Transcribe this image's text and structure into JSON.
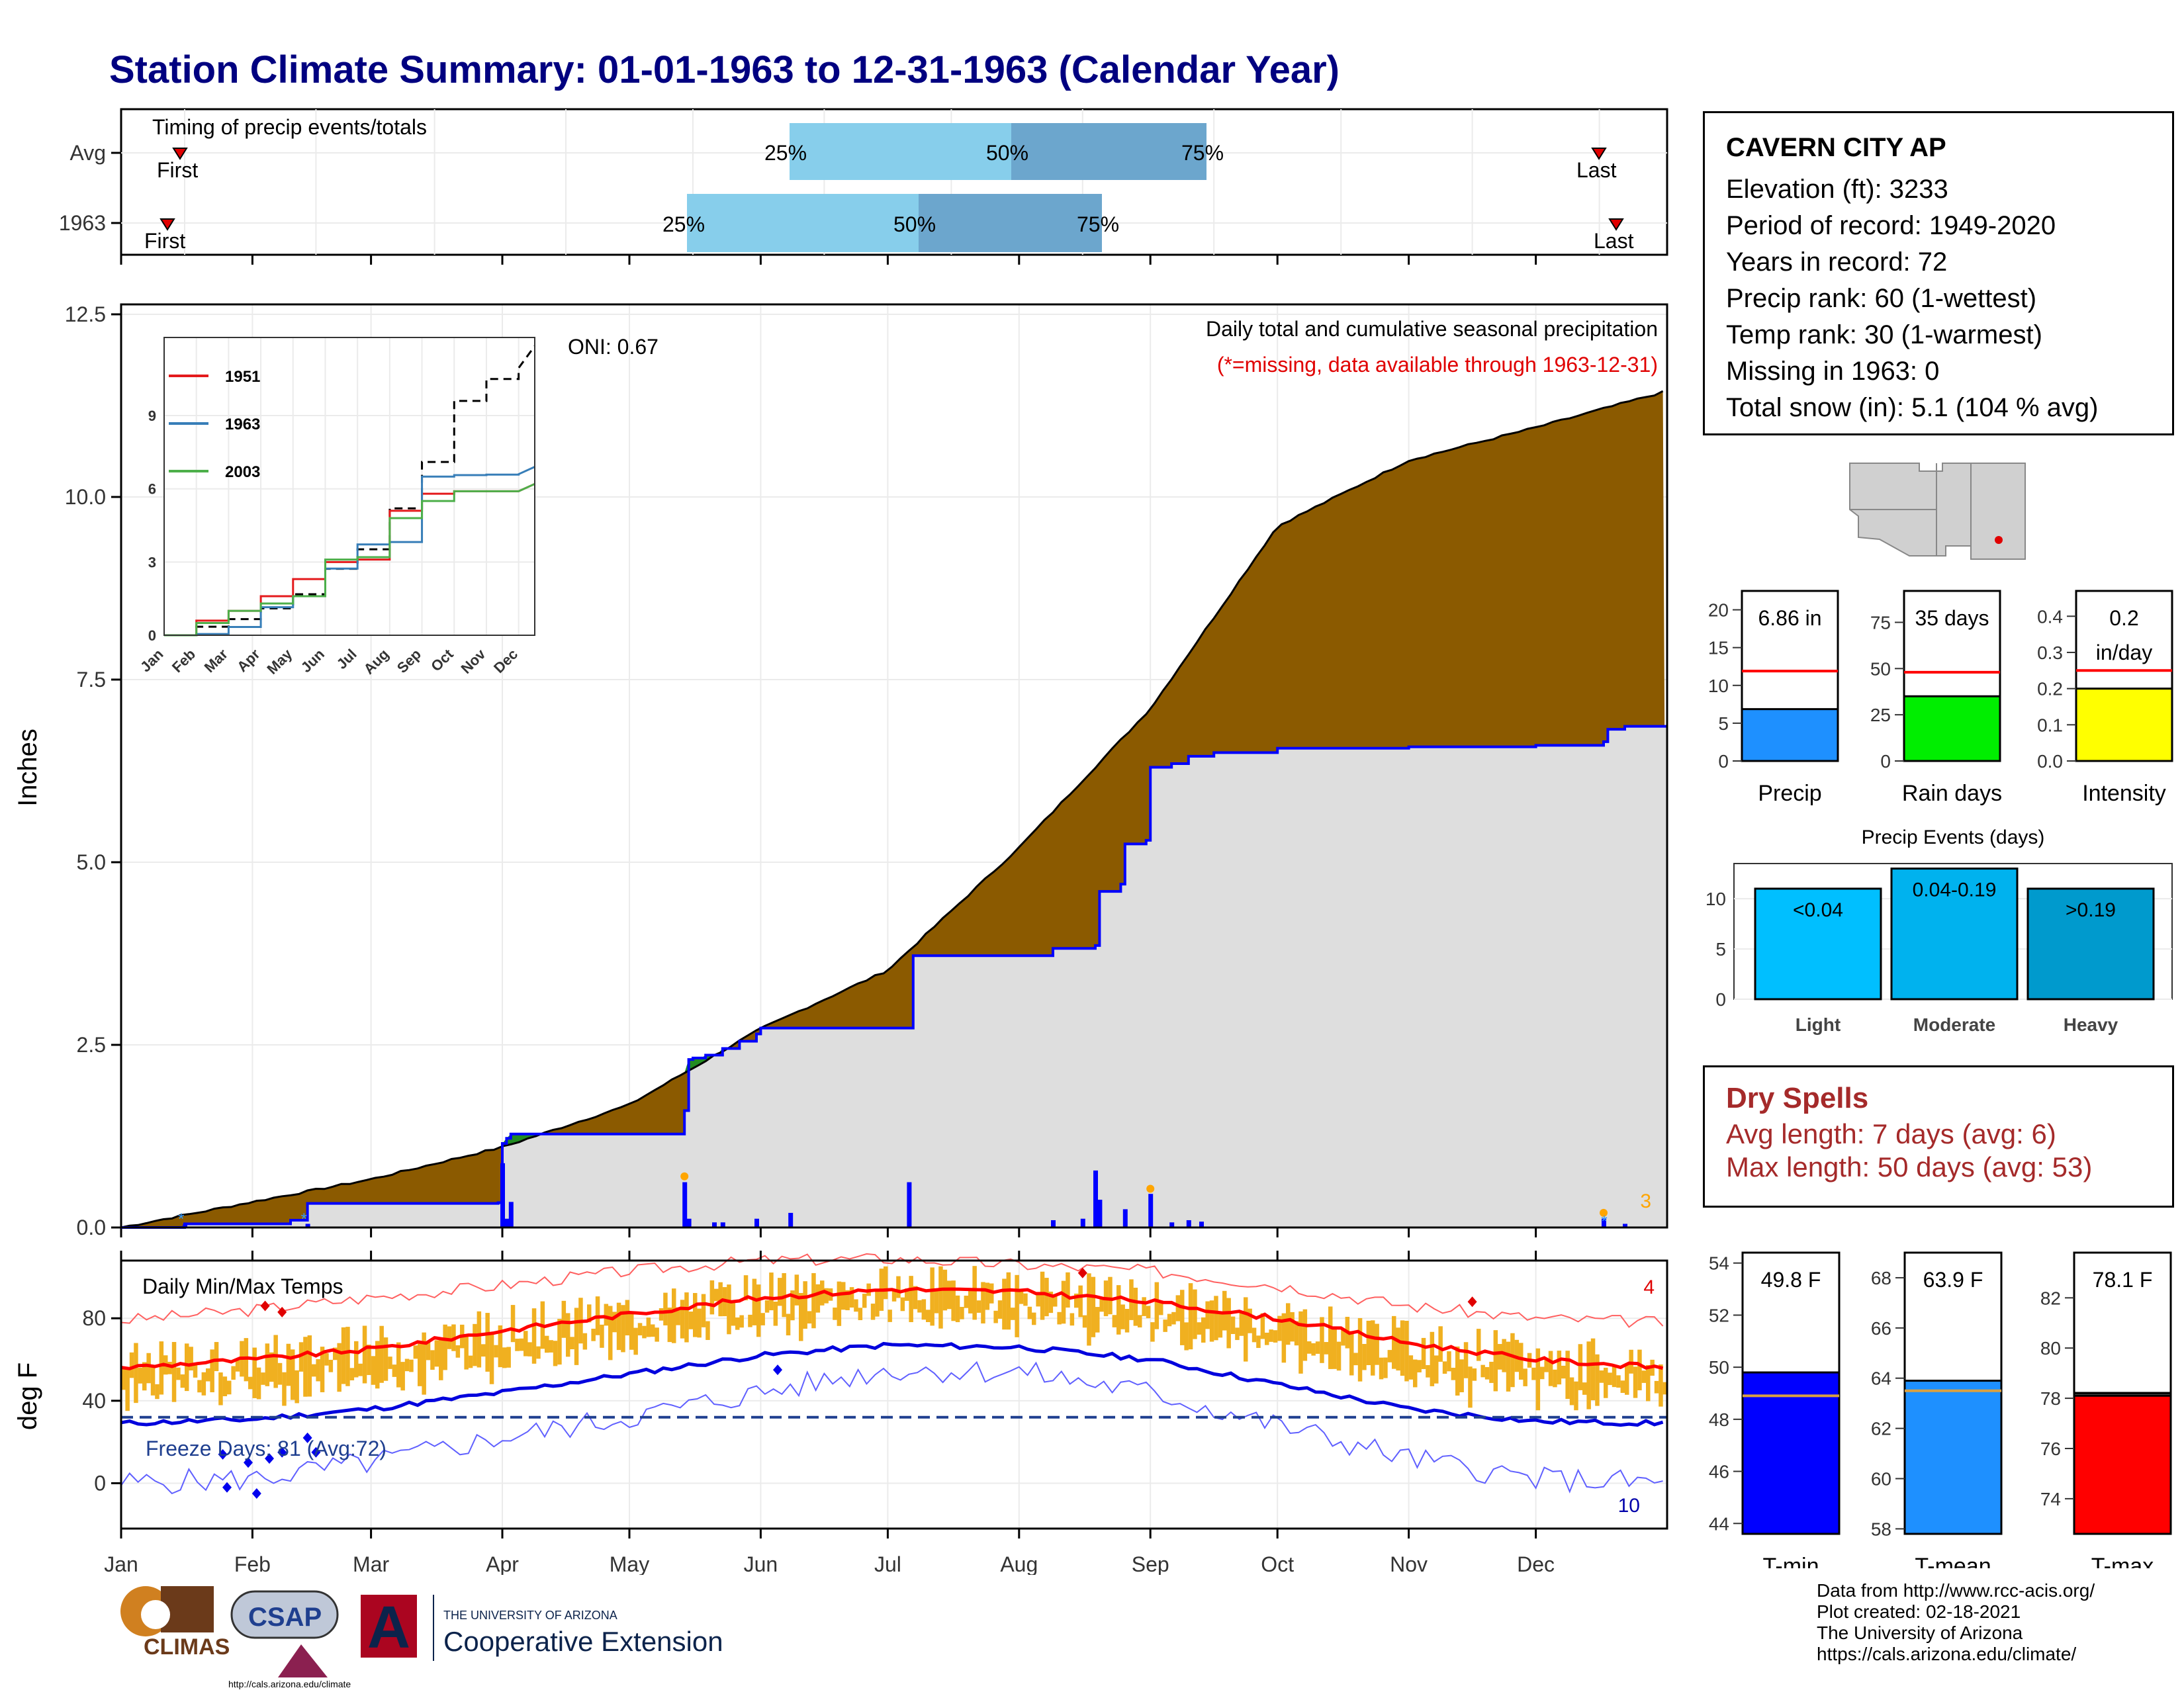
{
  "title": "Station Climate Summary: 01-01-1963 to 12-31-1963 (Calendar Year)",
  "colors": {
    "title": "#000080",
    "cumulative_above_normal": "#8B5A00",
    "cumulative_below_normal": "#228B22",
    "normal_fill": "#DEDEDE",
    "observed_line": "#0000FF",
    "quartile_light": "#87CEEB",
    "quartile_dark": "#6CA6CD",
    "temp_bars": "#F0B020",
    "tmax_normal": "#FF0000",
    "tmin_normal": "#0000DD",
    "dry_spells": "#A52A2A"
  },
  "timing": {
    "label": "Timing of precip events/totals",
    "rows": [
      {
        "row": "Avg",
        "first": "First",
        "last": "Last",
        "q25": "25%",
        "q50": "50%",
        "q75": "75%"
      },
      {
        "row": "1963",
        "first": "First",
        "last": "Last",
        "q25": "25%",
        "q50": "50%",
        "q75": "75%"
      }
    ]
  },
  "precip_panel": {
    "title": "Daily total and cumulative seasonal precipitation",
    "note": "(*=missing, data available through 1963-12-31)",
    "oni": "ONI: 0.67",
    "ylabel": "Inches",
    "yticks": [
      "0.0",
      "2.5",
      "5.0",
      "7.5",
      "10.0",
      "12.5"
    ],
    "corner_count": "3"
  },
  "inset": {
    "yticks": [
      "0",
      "3",
      "6",
      "9"
    ],
    "months": [
      "Jan",
      "Feb",
      "Mar",
      "Apr",
      "May",
      "Jun",
      "Jul",
      "Aug",
      "Sep",
      "Oct",
      "Nov",
      "Dec"
    ],
    "legend": [
      {
        "name": "1951",
        "color": "#E41A1C"
      },
      {
        "name": "1963",
        "color": "#377EB8"
      },
      {
        "name": "2003",
        "color": "#4DAF4A"
      }
    ]
  },
  "temp_panel": {
    "title": "Daily Min/Max Temps",
    "ylabel": "deg F",
    "yticks": [
      "0",
      "40",
      "80"
    ],
    "freeze": "Freeze Days: 81 (Avg:72)",
    "max_count": "4",
    "min_count": "10"
  },
  "months": [
    "Jan",
    "Feb",
    "Mar",
    "Apr",
    "May",
    "Jun",
    "Jul",
    "Aug",
    "Sep",
    "Oct",
    "Nov",
    "Dec"
  ],
  "station": {
    "name": "CAVERN CITY AP",
    "lines": [
      "Elevation (ft): 3233",
      "Period of record: 1949-2020",
      "Years in record: 72",
      "Precip rank: 60 (1-wettest)",
      "Temp rank: 30 (1-warmest)",
      "Missing in 1963: 0",
      "Total snow (in): 5.1 (104 % avg)"
    ]
  },
  "precip_bars": {
    "precip": {
      "label": "Precip",
      "value_text": "6.86 in",
      "yticks": [
        "0",
        "5",
        "10",
        "15",
        "20"
      ]
    },
    "rain_days": {
      "label": "Rain days",
      "value_text": "35 days",
      "yticks": [
        "0",
        "25",
        "50",
        "75"
      ]
    },
    "intensity": {
      "label": "Intensity",
      "value_text_1": "0.2",
      "value_text_2": "in/day",
      "yticks": [
        "0.0",
        "0.1",
        "0.2",
        "0.3",
        "0.4"
      ]
    }
  },
  "events": {
    "title": "Precip Events (days)",
    "yticks": [
      "0",
      "5",
      "10"
    ],
    "bars": [
      {
        "label": "Light",
        "text": "<0.04"
      },
      {
        "label": "Moderate",
        "text": "0.04-0.19"
      },
      {
        "label": "Heavy",
        "text": ">0.19"
      }
    ]
  },
  "dry_spells": {
    "title": "Dry Spells",
    "avg": "Avg length: 7 days (avg: 6)",
    "max": "Max length: 50 days (avg: 53)"
  },
  "temp_bars": {
    "tmin": {
      "label": "T-min",
      "value_text": "49.8 F",
      "yticks": [
        "44",
        "46",
        "48",
        "50",
        "52",
        "54"
      ]
    },
    "tmean": {
      "label": "T-mean",
      "value_text": "63.9 F",
      "yticks": [
        "58",
        "60",
        "62",
        "64",
        "66",
        "68"
      ]
    },
    "tmax": {
      "label": "T-max",
      "value_text": "78.1 F",
      "yticks": [
        "74",
        "76",
        "78",
        "80",
        "82"
      ]
    }
  },
  "credits": [
    "Data from http://www.rcc-acis.org/",
    "Plot created: 02-18-2021",
    "The University of Arizona",
    "https://cals.arizona.edu/climate/"
  ],
  "logos": {
    "climas": "CLIMAS",
    "csap": "CSAP",
    "csap_url": "http://cals.arizona.edu/climate",
    "ua_small": "THE UNIVERSITY OF ARIZONA",
    "coop": "Cooperative Extension"
  },
  "chart_data": [
    {
      "type": "area",
      "title": "Daily total and cumulative seasonal precipitation",
      "ylabel": "Inches",
      "ylim": [
        0,
        12.5
      ],
      "x_unit": "month_start",
      "series": [
        {
          "name": "cumulative_normal",
          "x": [
            "Jan",
            "Feb",
            "Mar",
            "Apr",
            "May",
            "Jun",
            "Jul",
            "Aug",
            "Sep",
            "Oct",
            "Nov",
            "Dec",
            "end"
          ],
          "values": [
            0.0,
            0.35,
            0.66,
            1.1,
            1.68,
            2.72,
            3.52,
            5.2,
            7.1,
            9.6,
            10.5,
            10.95,
            11.45
          ]
        },
        {
          "name": "cumulative_1963",
          "x": [
            "Jan",
            "Feb",
            "Mar",
            "Apr",
            "May",
            "Jun",
            "Jul",
            "Aug",
            "Sep",
            "Oct",
            "Nov",
            "Dec",
            "end"
          ],
          "values": [
            0.0,
            0.05,
            0.34,
            1.15,
            1.6,
            2.73,
            3.72,
            3.82,
            6.5,
            6.56,
            6.58,
            6.6,
            6.86
          ]
        },
        {
          "name": "daily_1963",
          "x": [
            "Apr 1",
            "May 14",
            "Jul 6",
            "Aug 11",
            "Aug 27"
          ],
          "values": [
            0.88,
            0.62,
            0.62,
            0.78,
            0.46
          ]
        }
      ]
    },
    {
      "type": "line",
      "title": "Daily Min/Max Temps",
      "ylabel": "deg F",
      "ylim": [
        -20,
        110
      ],
      "x": [
        "Jan",
        "Feb",
        "Mar",
        "Apr",
        "May",
        "Jun",
        "Jul",
        "Aug",
        "Sep",
        "Oct",
        "Nov",
        "Dec",
        "end"
      ],
      "series": [
        {
          "name": "normal_max",
          "values": [
            56,
            60,
            65,
            74,
            82,
            90,
            94,
            93,
            88,
            80,
            68,
            60,
            56
          ]
        },
        {
          "name": "normal_min",
          "values": [
            29,
            31,
            36,
            44,
            53,
            62,
            67,
            66,
            60,
            48,
            36,
            30,
            29
          ]
        },
        {
          "name": "record_max",
          "values": [
            79,
            84,
            90,
            96,
            103,
            108,
            109,
            106,
            103,
            96,
            86,
            80,
            78
          ]
        },
        {
          "name": "record_min",
          "values": [
            0,
            2,
            10,
            22,
            32,
            44,
            55,
            54,
            44,
            28,
            12,
            2,
            0
          ]
        }
      ],
      "freeze_line": 32
    },
    {
      "type": "line",
      "title": "",
      "x": [
        "Jan",
        "Feb",
        "Mar",
        "Apr",
        "May",
        "Jun",
        "Jul",
        "Aug",
        "Sep",
        "Oct",
        "Nov",
        "Dec"
      ],
      "ylim": [
        0,
        12
      ],
      "series": [
        {
          "name": "Average",
          "values": [
            0.0,
            0.35,
            0.66,
            1.1,
            1.68,
            2.72,
            3.52,
            5.2,
            7.1,
            9.6,
            10.5,
            10.95
          ]
        },
        {
          "name": "1951",
          "values": [
            0.0,
            0.6,
            1.0,
            1.6,
            2.3,
            3.0,
            3.1,
            5.1,
            5.8,
            5.9,
            5.9,
            5.9
          ]
        },
        {
          "name": "1963",
          "values": [
            0.0,
            0.05,
            0.34,
            1.15,
            1.6,
            2.73,
            3.72,
            3.82,
            6.5,
            6.56,
            6.58,
            6.6
          ]
        },
        {
          "name": "2003",
          "values": [
            0.0,
            0.5,
            1.0,
            1.3,
            1.6,
            3.1,
            3.2,
            4.8,
            5.5,
            5.9,
            5.9,
            5.9
          ]
        }
      ]
    },
    {
      "type": "bar",
      "categories": [
        "Precip",
        "Rain days",
        "Intensity"
      ],
      "series": [
        {
          "name": "1963",
          "values": [
            6.86,
            35,
            0.2
          ]
        },
        {
          "name": "Average",
          "values": [
            11.9,
            48,
            0.25
          ]
        }
      ]
    },
    {
      "type": "bar",
      "title": "Precip Events (days)",
      "categories": [
        "Light",
        "Moderate",
        "Heavy"
      ],
      "values": [
        11,
        13,
        11
      ],
      "ylim": [
        0,
        13.5
      ]
    },
    {
      "type": "bar",
      "categories": [
        "T-min",
        "T-mean",
        "T-max"
      ],
      "series": [
        {
          "name": "1963",
          "values": [
            49.8,
            63.9,
            78.1
          ]
        },
        {
          "name": "Average",
          "values": [
            48.9,
            63.5,
            78.1
          ]
        }
      ]
    }
  ]
}
